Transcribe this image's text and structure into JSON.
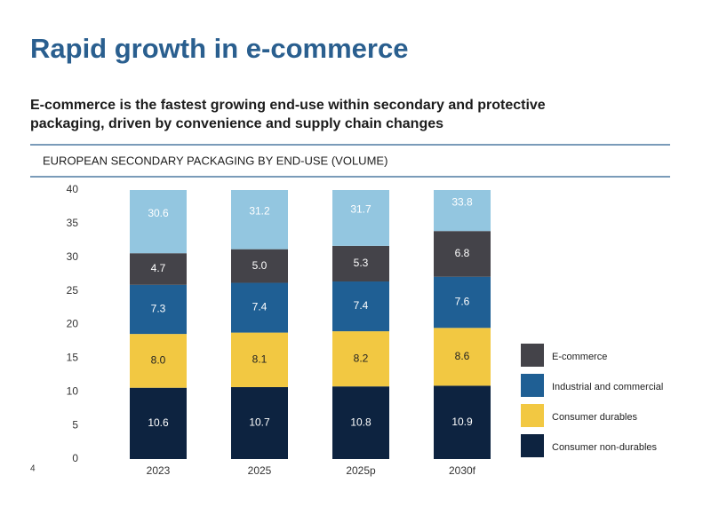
{
  "chart_data": {
    "type": "stacked_bar",
    "title": "Rapid growth in e-commerce",
    "subtitle": [
      "E-commerce is the fastest growing end-use within secondary and protective",
      "packaging, driven by convenience and supply chain changes"
    ],
    "chart_title": "EUROPEAN SECONDARY PACKAGING BY END-USE (VOLUME)",
    "page_number": "4",
    "categories": [
      "2023",
      "2025",
      "2025p",
      "2030f"
    ],
    "series": [
      {
        "name": "Consumer non-durables",
        "color": "#0d2340",
        "values": [
          10.6,
          10.7,
          10.8,
          10.9
        ]
      },
      {
        "name": "Consumer durables",
        "color": "#f2c842",
        "values": [
          8.0,
          8.1,
          8.2,
          8.6
        ],
        "value_labels": [
          "8.0",
          "8.1",
          "8.2",
          "8.6"
        ]
      },
      {
        "name": "Industrial and commercial",
        "color": "#1f5f94",
        "values": [
          7.3,
          7.4,
          7.4,
          7.6
        ]
      },
      {
        "name": "E-commerce",
        "color": "#444349",
        "values": [
          4.7,
          5.0,
          5.3,
          6.8
        ],
        "value_labels": [
          "4.7",
          "5.0",
          "5.3",
          "6.8"
        ]
      }
    ],
    "totals": [
      30.6,
      31.2,
      31.7,
      33.8
    ],
    "total_color": "#93c6e0",
    "ylim": [
      0,
      40
    ],
    "yticks": [
      0,
      5,
      10,
      15,
      20,
      25,
      30,
      35,
      40
    ]
  }
}
